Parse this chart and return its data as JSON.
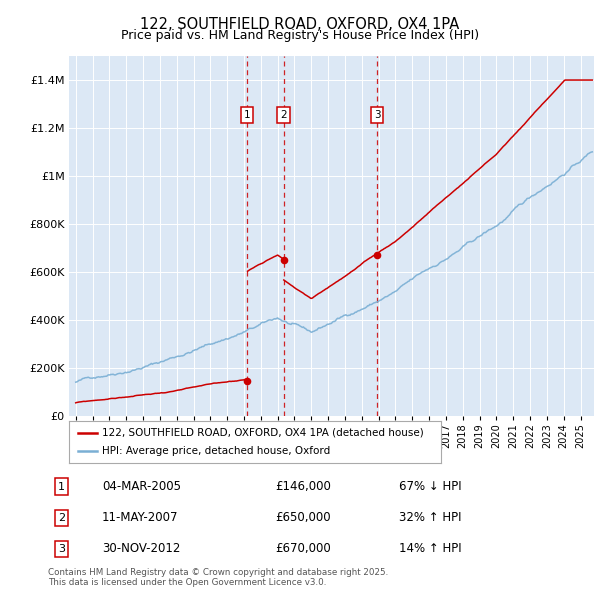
{
  "title_line1": "122, SOUTHFIELD ROAD, OXFORD, OX4 1PA",
  "title_line2": "Price paid vs. HM Land Registry's House Price Index (HPI)",
  "legend_red": "122, SOUTHFIELD ROAD, OXFORD, OX4 1PA (detached house)",
  "legend_blue": "HPI: Average price, detached house, Oxford",
  "transactions": [
    {
      "num": 1,
      "date_label": "04-MAR-2005",
      "date_x": 2005.17,
      "price": 146000,
      "pct": "67% ↓ HPI"
    },
    {
      "num": 2,
      "date_label": "11-MAY-2007",
      "date_x": 2007.36,
      "price": 650000,
      "pct": "32% ↑ HPI"
    },
    {
      "num": 3,
      "date_label": "30-NOV-2012",
      "date_x": 2012.92,
      "price": 670000,
      "pct": "14% ↑ HPI"
    }
  ],
  "footer": "Contains HM Land Registry data © Crown copyright and database right 2025.\nThis data is licensed under the Open Government Licence v3.0.",
  "plot_bg_color": "#dce8f5",
  "red_color": "#cc0000",
  "blue_color": "#7aafd4",
  "ylim": [
    0,
    1500000
  ],
  "yticks": [
    0,
    200000,
    400000,
    600000,
    800000,
    1000000,
    1200000,
    1400000
  ],
  "xlim_left": 1994.6,
  "xlim_right": 2025.8
}
